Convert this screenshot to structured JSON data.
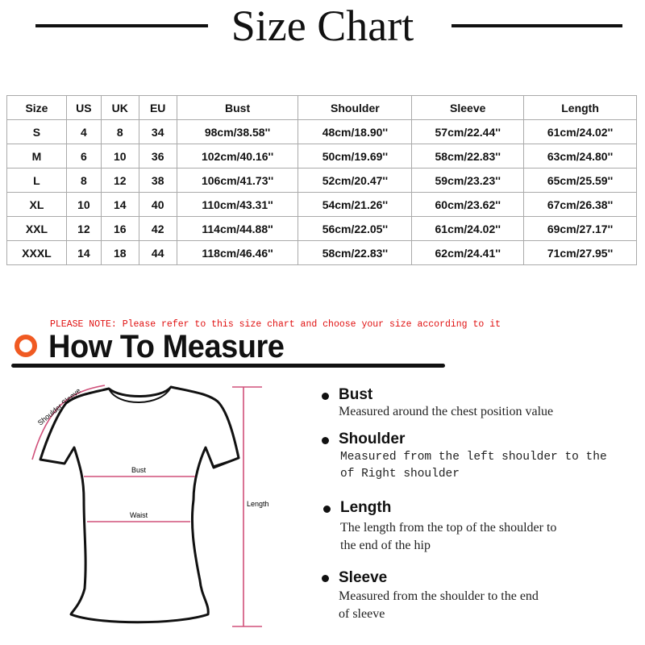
{
  "title": "Size Chart",
  "table": {
    "headers": [
      "Size",
      "US",
      "UK",
      "EU",
      "Bust",
      "Shoulder",
      "Sleeve",
      "Length"
    ],
    "rows": [
      [
        "S",
        "4",
        "8",
        "34",
        "98cm/38.58''",
        "48cm/18.90''",
        "57cm/22.44''",
        "61cm/24.02''"
      ],
      [
        "M",
        "6",
        "10",
        "36",
        "102cm/40.16''",
        "50cm/19.69''",
        "58cm/22.83''",
        "63cm/24.80''"
      ],
      [
        "L",
        "8",
        "12",
        "38",
        "106cm/41.73''",
        "52cm/20.47''",
        "59cm/23.23''",
        "65cm/25.59''"
      ],
      [
        "XL",
        "10",
        "14",
        "40",
        "110cm/43.31''",
        "54cm/21.26''",
        "60cm/23.62''",
        "67cm/26.38''"
      ],
      [
        "XXL",
        "12",
        "16",
        "42",
        "114cm/44.88''",
        "56cm/22.05''",
        "61cm/24.02''",
        "69cm/27.17''"
      ],
      [
        "XXXL",
        "14",
        "18",
        "44",
        "118cm/46.46''",
        "58cm/22.83''",
        "62cm/24.41''",
        "71cm/27.95''"
      ]
    ]
  },
  "note": "PLEASE NOTE: Please refer to this size chart and choose your size according to it",
  "how_to_title": "How To Measure",
  "diagram": {
    "shoulder_sleeve": "Shoulder Sleeve",
    "bust": "Bust",
    "waist": "Waist",
    "length": "Length"
  },
  "measures": [
    {
      "name": "Bust",
      "desc": [
        "Measured around the chest position value"
      ]
    },
    {
      "name": "Shoulder",
      "desc": [
        "Measured from the left shoulder to the",
        "of Right shoulder"
      ]
    },
    {
      "name": "Length",
      "desc": [
        "The length from the top of the shoulder to",
        "the end of the hip"
      ]
    },
    {
      "name": "Sleeve",
      "desc": [
        "Measured from the shoulder to the end",
        "of sleeve"
      ]
    }
  ],
  "colors": {
    "accent": "#f05a22",
    "note": "#e01010",
    "measure_line": "#d0507a"
  }
}
